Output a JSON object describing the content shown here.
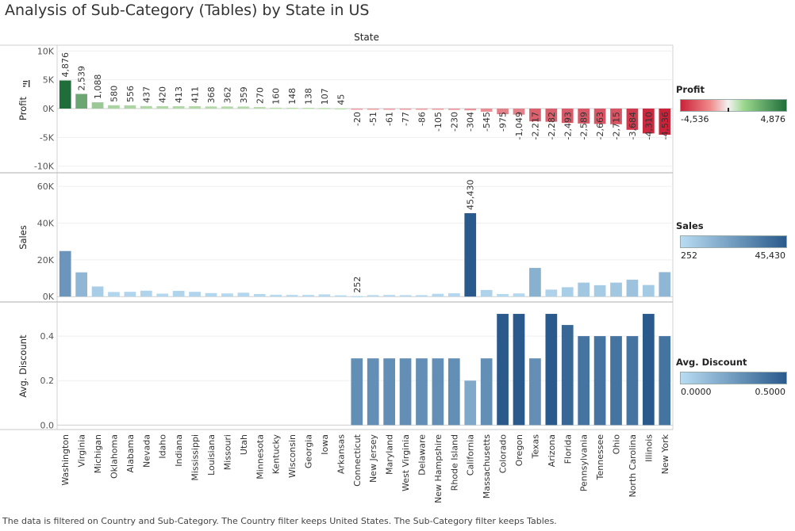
{
  "title": "Analysis of Sub-Category (Tables) by State in US",
  "footer": "The data is filtered on Country and Sub-Category. The Country filter keeps United States. The Sub-Category filter keeps Tables.",
  "chart_data": {
    "type": "bar",
    "column_header": "State",
    "categories": [
      "Washington",
      "Virginia",
      "Michigan",
      "Oklahoma",
      "Alabama",
      "Nevada",
      "Idaho",
      "Indiana",
      "Mississippi",
      "Louisiana",
      "Missouri",
      "Utah",
      "Minnesota",
      "Kentucky",
      "Wisconsin",
      "Georgia",
      "Iowa",
      "Arkansas",
      "Connecticut",
      "New Jersey",
      "Maryland",
      "West Virginia",
      "Delaware",
      "New Hampshire",
      "Rhode Island",
      "California",
      "Massachusetts",
      "Colorado",
      "Oregon",
      "Texas",
      "Arizona",
      "Florida",
      "Pennsylvania",
      "Tennessee",
      "Ohio",
      "North Carolina",
      "Illinois",
      "New York"
    ],
    "panels": [
      {
        "name": "Profit",
        "ylabel": "Profit",
        "ylim": [
          -11000,
          11000
        ],
        "ticks": [
          10000,
          5000,
          0,
          -5000,
          -10000
        ],
        "tick_labels": [
          "10K",
          "5K",
          "0K",
          "-5K",
          "-10K"
        ],
        "values": [
          4876,
          2539,
          1088,
          580,
          556,
          437,
          420,
          413,
          411,
          368,
          362,
          359,
          270,
          160,
          148,
          138,
          107,
          45,
          -20,
          -51,
          -61,
          -77,
          -86,
          -105,
          -230,
          -304,
          -545,
          -975,
          -1049,
          -2217,
          -2282,
          -2493,
          -2589,
          -2663,
          -2715,
          -3684,
          -4310,
          -4536
        ],
        "labels": [
          "4,876",
          "2,539",
          "1,088",
          "580",
          "556",
          "437",
          "420",
          "413",
          "411",
          "368",
          "362",
          "359",
          "270",
          "160",
          "148",
          "138",
          "107",
          "45",
          "-20",
          "-51",
          "-61",
          "-77",
          "-86",
          "-105",
          "-230",
          "-304",
          "-545",
          "-975",
          "-1,049",
          "-2,217",
          "-2,282",
          "-2,493",
          "-2,589",
          "-2,663",
          "-2,715",
          "-3,684",
          "-4,310",
          "-4,536"
        ]
      },
      {
        "name": "Sales",
        "ylabel": "Sales",
        "ylim": [
          -2500,
          67000
        ],
        "ticks": [
          60000,
          40000,
          20000,
          0
        ],
        "tick_labels": [
          "60K",
          "40K",
          "20K",
          "0K"
        ],
        "values": [
          24800,
          13200,
          5500,
          2500,
          2600,
          3200,
          1600,
          3100,
          2600,
          1900,
          1700,
          2100,
          1400,
          1000,
          900,
          900,
          1200,
          700,
          252,
          800,
          900,
          800,
          800,
          1500,
          1800,
          45430,
          3600,
          1400,
          1700,
          15600,
          3800,
          5100,
          7600,
          6200,
          7600,
          9200,
          6300,
          13300
        ],
        "labeled": {
          "18": "252",
          "25": "45,430"
        }
      },
      {
        "name": "Avg. Discount",
        "ylabel": "Avg. Discount",
        "ylim": [
          -0.02,
          0.55
        ],
        "ticks": [
          0.4,
          0.2,
          0.0
        ],
        "tick_labels": [
          "0.4",
          "0.2",
          "0.0"
        ],
        "values": [
          0,
          0,
          0,
          0,
          0,
          0,
          0,
          0,
          0,
          0,
          0,
          0,
          0,
          0,
          0,
          0,
          0,
          0,
          0.3,
          0.3,
          0.3,
          0.3,
          0.3,
          0.3,
          0.3,
          0.2,
          0.3,
          0.5,
          0.5,
          0.3,
          0.5,
          0.45,
          0.4,
          0.4,
          0.4,
          0.4,
          0.5,
          0.4
        ]
      }
    ]
  },
  "legends": {
    "profit": {
      "title": "Profit",
      "min": "-4,536",
      "max": "4,876",
      "neg_color": "#c9233a",
      "mid_color": "#f2f2f2",
      "pos_color": "#1f6e3a"
    },
    "sales": {
      "title": "Sales",
      "min": "252",
      "max": "45,430",
      "low_color": "#b8dcf2",
      "high_color": "#2a5a8c"
    },
    "discount": {
      "title": "Avg. Discount",
      "min": "0.0000",
      "max": "0.5000",
      "low_color": "#b8dcf2",
      "high_color": "#2a5a8c"
    }
  },
  "sort_icon": "sort-icon"
}
